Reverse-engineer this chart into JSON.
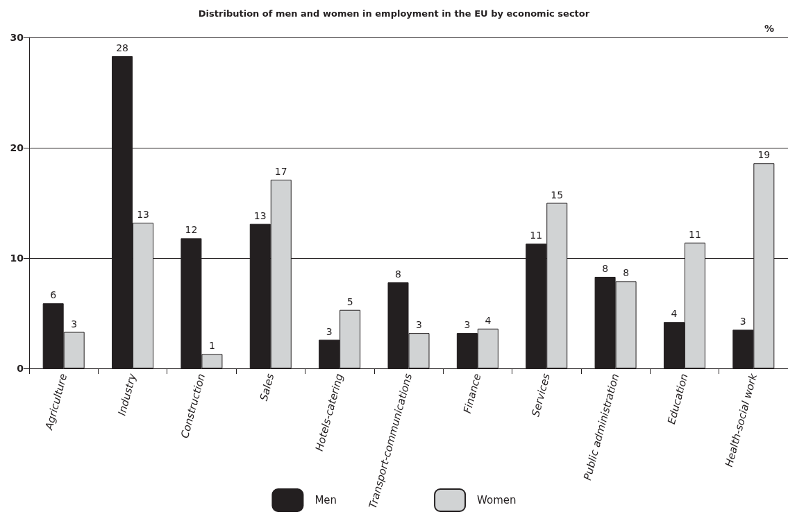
{
  "chart_data": {
    "type": "bar",
    "title": "Distribution of men and women in employment in the EU by economic sector",
    "ylabel": "%",
    "categories": [
      "Agriculture",
      "Industry",
      "Construction",
      "Sales",
      "Hotels-catering",
      "Transport-communications",
      "Finance",
      "Services",
      "Public administration",
      "Education",
      "Health-social work"
    ],
    "series": [
      {
        "name": "Men",
        "color": "#231f20",
        "values": [
          5.9,
          28.3,
          11.8,
          13.1,
          2.6,
          7.8,
          3.2,
          11.3,
          8.3,
          4.2,
          3.5
        ],
        "value_labels": [
          "6",
          "28",
          "12",
          "13",
          "3",
          "8",
          "3",
          "11",
          "8",
          "4",
          "3"
        ]
      },
      {
        "name": "Women",
        "color": "#d1d3d4",
        "values": [
          3.3,
          13.2,
          1.3,
          17.1,
          5.3,
          3.2,
          3.6,
          15.0,
          7.9,
          11.4,
          18.6
        ],
        "value_labels": [
          "3",
          "13",
          "1",
          "17",
          "5",
          "3",
          "4",
          "15",
          "8",
          "11",
          "19"
        ]
      }
    ],
    "ylim": [
      0,
      30
    ],
    "yticks": [
      0,
      10,
      20,
      30
    ],
    "grid": "y",
    "legend": "bottom"
  }
}
